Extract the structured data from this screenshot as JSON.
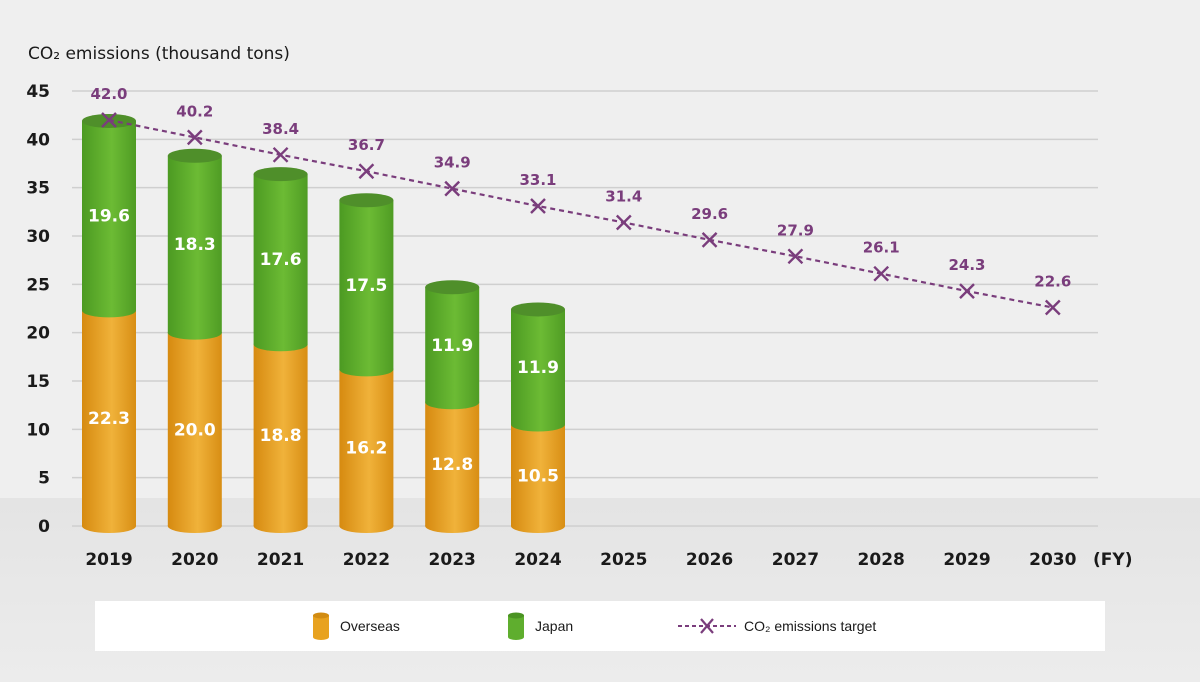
{
  "chart_data": {
    "type": "bar",
    "stacked": true,
    "title": "CO₂ emissions (thousand tons)",
    "xlabel": "(FY)",
    "ylabel": "CO₂ emissions (thousand tons)",
    "ylim": [
      0,
      45
    ],
    "yticks": [
      "0",
      "5",
      "10",
      "15",
      "20",
      "25",
      "30",
      "35",
      "40",
      "45"
    ],
    "grid": true,
    "categories": [
      "2019",
      "2020",
      "2021",
      "2022",
      "2023",
      "2024",
      "2025",
      "2026",
      "2027",
      "2028",
      "2029",
      "2030"
    ],
    "series": [
      {
        "name": "Overseas",
        "type": "bar",
        "color": "#e8a21f",
        "values": [
          22.3,
          20.0,
          18.8,
          16.2,
          12.8,
          10.5,
          null,
          null,
          null,
          null,
          null,
          null
        ],
        "labels": [
          "22.3",
          "20.0",
          "18.8",
          "16.2",
          "12.8",
          "10.5"
        ]
      },
      {
        "name": "Japan",
        "type": "bar",
        "color": "#5fae2e",
        "values": [
          19.6,
          18.3,
          17.6,
          17.5,
          11.9,
          11.9,
          null,
          null,
          null,
          null,
          null,
          null
        ],
        "labels": [
          "19.6",
          "18.3",
          "17.6",
          "17.5",
          "11.9",
          "11.9"
        ]
      },
      {
        "name": "CO₂ emissions target",
        "type": "line",
        "color": "#7a3d7c",
        "marker": "x",
        "dashed": true,
        "values": [
          42.0,
          40.2,
          38.4,
          36.7,
          34.9,
          33.1,
          31.4,
          29.6,
          27.9,
          26.1,
          24.3,
          22.6
        ],
        "labels": [
          "42.0",
          "40.2",
          "38.4",
          "36.7",
          "34.9",
          "33.1",
          "31.4",
          "29.6",
          "27.9",
          "26.1",
          "24.3",
          "22.6"
        ]
      }
    ],
    "legend": {
      "position": "bottom",
      "items": [
        {
          "label": "Overseas",
          "icon": "orange-cylinder-icon"
        },
        {
          "label": "Japan",
          "icon": "green-cylinder-icon"
        },
        {
          "label": "CO₂ emissions target",
          "icon": "dashed-x-line-icon"
        }
      ]
    }
  }
}
